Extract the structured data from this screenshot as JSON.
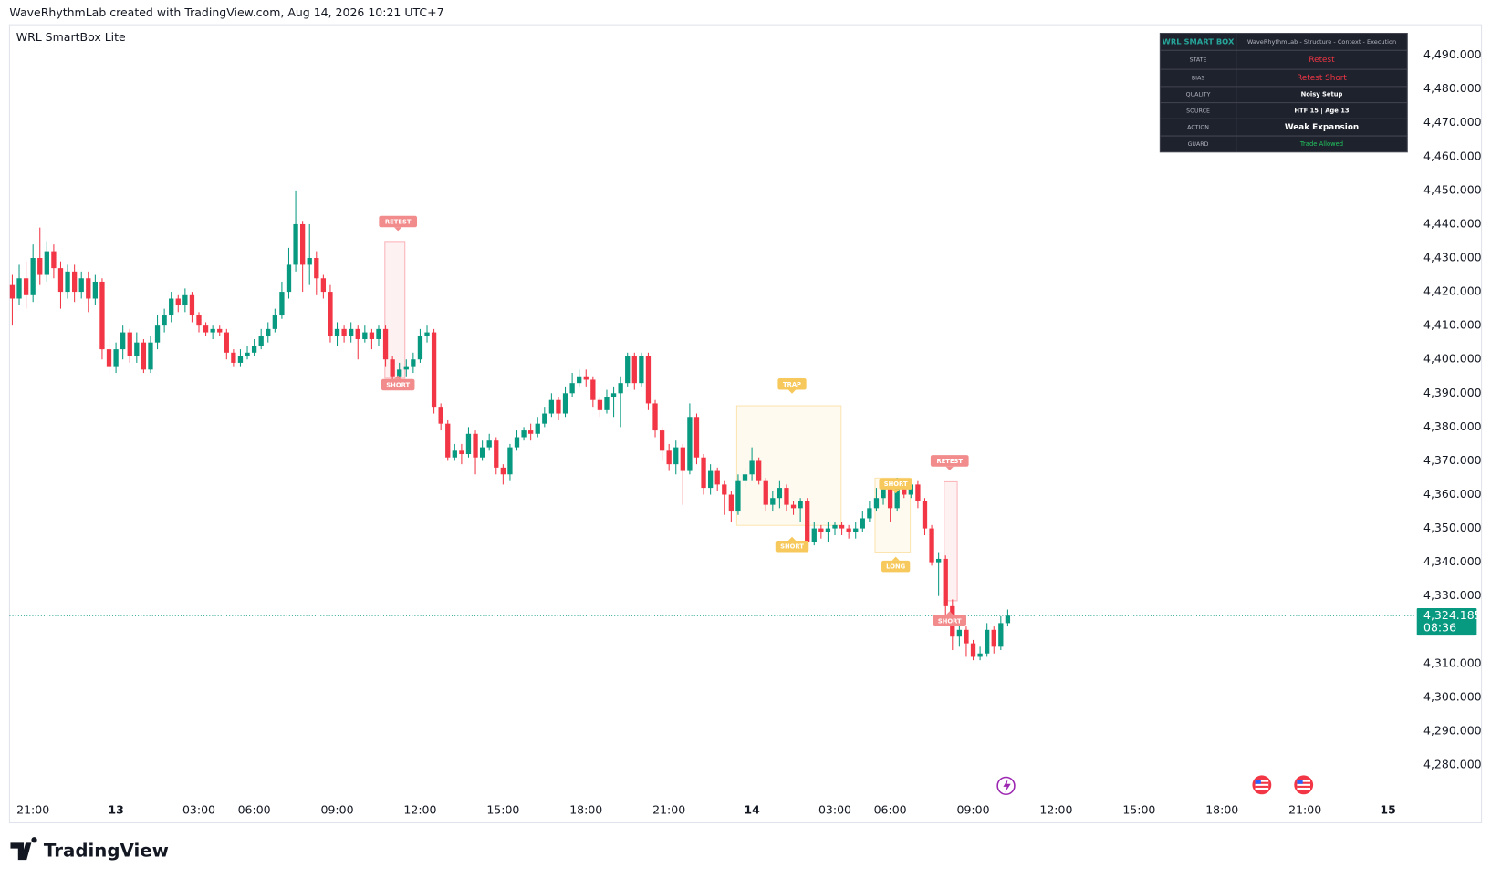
{
  "header": "WaveRhythmLab created with TradingView.com, Aug 14, 2026 10:21 UTC+7",
  "footer": "TradingView",
  "chart_data": {
    "type": "candlestick",
    "title": "WRL SmartBox Lite",
    "up_color": "#089981",
    "down_color": "#f23645",
    "grid": false,
    "xlim": [
      -0.4,
      202.9
    ],
    "ylim": [
      4270.2,
      4499.3
    ],
    "xticks": [
      {
        "value": 3,
        "label": "21:00"
      },
      {
        "value": 15,
        "label": "13"
      },
      {
        "value": 27,
        "label": "03:00"
      },
      {
        "value": 35,
        "label": "06:00"
      },
      {
        "value": 47,
        "label": "09:00"
      },
      {
        "value": 59,
        "label": "12:00"
      },
      {
        "value": 71,
        "label": "15:00"
      },
      {
        "value": 83,
        "label": "18:00"
      },
      {
        "value": 95,
        "label": "21:00"
      },
      {
        "value": 107,
        "label": "14"
      },
      {
        "value": 119,
        "label": "03:00"
      },
      {
        "value": 127,
        "label": "06:00"
      },
      {
        "value": 139,
        "label": "09:00"
      },
      {
        "value": 151,
        "label": "12:00"
      },
      {
        "value": 163,
        "label": "15:00"
      },
      {
        "value": 175,
        "label": "18:00"
      },
      {
        "value": 187,
        "label": "21:00"
      },
      {
        "value": 199,
        "label": "15"
      }
    ],
    "yticks": [
      {
        "value": 4280,
        "label": "4,280.000"
      },
      {
        "value": 4290,
        "label": "4,290.000"
      },
      {
        "value": 4300,
        "label": "4,300.000"
      },
      {
        "value": 4310,
        "label": "4,310.000"
      },
      {
        "value": 4330,
        "label": "4,330.000"
      },
      {
        "value": 4340,
        "label": "4,340.000"
      },
      {
        "value": 4350,
        "label": "4,350.000"
      },
      {
        "value": 4360,
        "label": "4,360.000"
      },
      {
        "value": 4370,
        "label": "4,370.000"
      },
      {
        "value": 4380,
        "label": "4,380.000"
      },
      {
        "value": 4390,
        "label": "4,390.000"
      },
      {
        "value": 4400,
        "label": "4,400.000"
      },
      {
        "value": 4410,
        "label": "4,410.000"
      },
      {
        "value": 4420,
        "label": "4,420.000"
      },
      {
        "value": 4430,
        "label": "4,430.000"
      },
      {
        "value": 4440,
        "label": "4,440.000"
      },
      {
        "value": 4450,
        "label": "4,450.000"
      },
      {
        "value": 4460,
        "label": "4,460.000"
      },
      {
        "value": 4470,
        "label": "4,470.000"
      },
      {
        "value": 4480,
        "label": "4,480.000"
      },
      {
        "value": 4490,
        "label": "4,490.000"
      }
    ],
    "open": [
      4422,
      4418,
      4424,
      4419,
      4430,
      4425,
      4432,
      4427,
      4420,
      4426,
      4420,
      4424,
      4418,
      4423,
      4403,
      4398,
      4403,
      4408,
      4401,
      4405,
      4397,
      4405,
      4410,
      4413,
      4418,
      4416,
      4419,
      4413,
      4410,
      4408,
      4409,
      4408,
      4402,
      4399,
      4401,
      4402,
      4404,
      4407,
      4409,
      4413,
      4420,
      4428,
      4440,
      4428,
      4430,
      4424,
      4420,
      4407,
      4409,
      4407,
      4409,
      4406,
      4408,
      4406,
      4409,
      4400,
      4395,
      4397,
      4398,
      4400,
      4407,
      4408,
      4386,
      4381,
      4371,
      4373,
      4372,
      4378,
      4371,
      4374,
      4376,
      4368,
      4366,
      4374,
      4377,
      4379,
      4378,
      4381,
      4384,
      4388,
      4384,
      4390,
      4393,
      4395,
      4394,
      4388,
      4385,
      4389,
      4390,
      4393,
      4401,
      4393,
      4401,
      4387,
      4379,
      4373,
      4369,
      4374,
      4367,
      4383,
      4371,
      4362,
      4367,
      4363,
      4360,
      4355,
      4364,
      4366,
      4370,
      4364,
      4357,
      4359,
      4362,
      4357,
      4356,
      4358,
      4346,
      4350,
      4349,
      4350,
      4351,
      4350,
      4349,
      4350,
      4353,
      4356,
      4359,
      4362,
      4356,
      4363,
      4360,
      4363,
      4358,
      4350,
      4340,
      4341,
      4327,
      4318,
      4320,
      4316,
      4312,
      4313,
      4320,
      4315,
      4322
    ],
    "high": [
      4425,
      4428,
      4429,
      4434,
      4439,
      4435,
      4434,
      4429,
      4428,
      4428,
      4426,
      4426,
      4425,
      4424,
      4406,
      4405,
      4410,
      4409,
      4408,
      4406,
      4407,
      4413,
      4415,
      4420,
      4419,
      4421,
      4420,
      4414,
      4411,
      4410,
      4410,
      4409,
      4403,
      4403,
      4404,
      4406,
      4409,
      4411,
      4415,
      4423,
      4433,
      4450,
      4441,
      4440,
      4432,
      4425,
      4422,
      4411,
      4410,
      4411,
      4410,
      4410,
      4409,
      4410,
      4410,
      4401,
      4399,
      4400,
      4402,
      4409,
      4410,
      4409,
      4387,
      4382,
      4375,
      4375,
      4380,
      4379,
      4376,
      4378,
      4377,
      4369,
      4375,
      4379,
      4380,
      4381,
      4383,
      4386,
      4390,
      4389,
      4392,
      4396,
      4397,
      4397,
      4395,
      4389,
      4391,
      4392,
      4395,
      4402,
      4402,
      4402,
      4402,
      4388,
      4380,
      4375,
      4376,
      4375,
      4387,
      4384,
      4372,
      4369,
      4368,
      4364,
      4361,
      4366,
      4368,
      4374,
      4371,
      4365,
      4361,
      4364,
      4363,
      4358,
      4359,
      4359,
      4352,
      4351,
      4352,
      4352,
      4352,
      4351,
      4352,
      4355,
      4358,
      4362,
      4364,
      4363,
      4365,
      4364,
      4364,
      4364,
      4359,
      4351,
      4343,
      4342,
      4329,
      4323,
      4321,
      4317,
      4315,
      4322,
      4321,
      4324,
      4326
    ],
    "low": [
      4410,
      4416,
      4415,
      4417,
      4422,
      4423,
      4424,
      4415,
      4418,
      4417,
      4418,
      4414,
      4416,
      4400,
      4396,
      4396,
      4400,
      4399,
      4399,
      4396,
      4396,
      4403,
      4408,
      4411,
      4414,
      4414,
      4411,
      4408,
      4407,
      4406,
      4407,
      4400,
      4398,
      4398,
      4400,
      4401,
      4403,
      4405,
      4408,
      4412,
      4418,
      4426,
      4420,
      4422,
      4419,
      4418,
      4405,
      4404,
      4405,
      4405,
      4400,
      4405,
      4403,
      4404,
      4398,
      4393,
      4394,
      4395,
      4396,
      4399,
      4405,
      4384,
      4379,
      4370,
      4370,
      4369,
      4371,
      4366,
      4370,
      4373,
      4366,
      4363,
      4364,
      4373,
      4376,
      4376,
      4377,
      4380,
      4383,
      4382,
      4383,
      4389,
      4392,
      4392,
      4386,
      4383,
      4384,
      4383,
      4380,
      4392,
      4391,
      4392,
      4385,
      4377,
      4370,
      4367,
      4366,
      4357,
      4366,
      4369,
      4360,
      4360,
      4361,
      4354,
      4352,
      4354,
      4362,
      4364,
      4363,
      4355,
      4355,
      4356,
      4355,
      4354,
      4352,
      4344,
      4345,
      4347,
      4346,
      4348,
      4348,
      4347,
      4347,
      4349,
      4352,
      4355,
      4357,
      4352,
      4355,
      4359,
      4359,
      4356,
      4348,
      4339,
      4330,
      4323,
      4314,
      4315,
      4312,
      4311,
      4311,
      4312,
      4313,
      4314,
      4321
    ],
    "close": [
      4418,
      4424,
      4419,
      4430,
      4425,
      4432,
      4427,
      4420,
      4426,
      4420,
      4424,
      4418,
      4423,
      4403,
      4398,
      4403,
      4408,
      4401,
      4405,
      4397,
      4405,
      4410,
      4413,
      4418,
      4416,
      4419,
      4413,
      4410,
      4408,
      4409,
      4408,
      4402,
      4399,
      4401,
      4402,
      4404,
      4407,
      4409,
      4413,
      4420,
      4428,
      4440,
      4428,
      4430,
      4424,
      4420,
      4407,
      4409,
      4407,
      4409,
      4406,
      4408,
      4406,
      4409,
      4400,
      4395,
      4397,
      4398,
      4400,
      4407,
      4408,
      4386,
      4381,
      4371,
      4373,
      4372,
      4378,
      4371,
      4374,
      4376,
      4368,
      4366,
      4374,
      4377,
      4379,
      4378,
      4381,
      4384,
      4388,
      4384,
      4390,
      4393,
      4395,
      4394,
      4388,
      4385,
      4389,
      4390,
      4393,
      4401,
      4393,
      4401,
      4387,
      4379,
      4373,
      4369,
      4374,
      4367,
      4383,
      4371,
      4362,
      4367,
      4363,
      4360,
      4355,
      4364,
      4366,
      4370,
      4364,
      4357,
      4359,
      4362,
      4357,
      4356,
      4358,
      4346,
      4350,
      4349,
      4350,
      4351,
      4350,
      4349,
      4350,
      4353,
      4356,
      4359,
      4362,
      4356,
      4363,
      4360,
      4363,
      4358,
      4350,
      4340,
      4341,
      4327,
      4318,
      4320,
      4316,
      4312,
      4313,
      4320,
      4315,
      4322,
      4324.185
    ],
    "last_price": {
      "value": 4324.185,
      "label": "4,324.185"
    },
    "countdown": "08:36",
    "zones": [
      {
        "x": [
          53.9,
          56.8
        ],
        "y": [
          4394.4,
          4434.9
        ],
        "color": "#f23645"
      },
      {
        "x": [
          104.8,
          119.9
        ],
        "y": [
          4350.9,
          4386.3
        ],
        "color": "#f5b82e"
      },
      {
        "x": [
          124.8,
          129.9
        ],
        "y": [
          4343,
          4364.9
        ],
        "color": "#f5b82e"
      },
      {
        "x": [
          134.8,
          136.7
        ],
        "y": [
          4328.6,
          4363.8
        ],
        "color": "#f23645"
      }
    ],
    "signals": [
      {
        "label": "RETEST",
        "x": 55.8,
        "y": 4440.8,
        "position": "above",
        "color": "#f28b8b"
      },
      {
        "label": "SHORT",
        "x": 55.8,
        "y": 4392.5,
        "position": "below",
        "color": "#f28b8b"
      },
      {
        "label": "TRAP",
        "x": 112.8,
        "y": 4392.7,
        "position": "above",
        "color": "#f7c95c"
      },
      {
        "label": "SHORT",
        "x": 112.8,
        "y": 4344.7,
        "position": "below",
        "color": "#f7c95c"
      },
      {
        "label": "SHORT",
        "x": 127.8,
        "y": 4363.2,
        "position": "above",
        "color": "#f7c95c"
      },
      {
        "label": "LONG",
        "x": 127.8,
        "y": 4338.8,
        "position": "below",
        "color": "#f7c95c"
      },
      {
        "label": "RETEST",
        "x": 135.6,
        "y": 4370,
        "position": "above",
        "color": "#f28b8b"
      },
      {
        "label": "SHORT",
        "x": 135.6,
        "y": 4322.7,
        "position": "below",
        "color": "#f28b8b"
      }
    ]
  },
  "info_table": {
    "title": "WRL SMART BOX",
    "subtitle": "WaveRhythmLab - Structure - Context - Execution",
    "rows": [
      [
        "STATE",
        "Retest"
      ],
      [
        "BIAS",
        "Retest Short"
      ],
      [
        "QUALITY",
        "Noisy Setup"
      ],
      [
        "SOURCE",
        "HTF 15 | Age 13"
      ],
      [
        "ACTION",
        "Weak Expansion"
      ],
      [
        "GUARD",
        "Trade Allowed"
      ]
    ],
    "value_colors": [
      "#f23645",
      "#f23645",
      "#ffffff",
      "#ffffff",
      "#ffffff",
      "#22c55e"
    ]
  }
}
